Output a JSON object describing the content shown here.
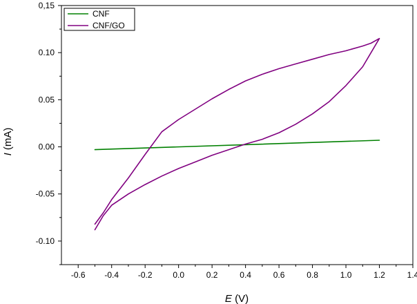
{
  "chart_data": {
    "type": "line",
    "xlabel_italic": "E",
    "xlabel_unit": "(V)",
    "ylabel_italic": "I",
    "ylabel_unit": "(mA)",
    "xlim": [
      -0.7,
      1.4
    ],
    "ylim": [
      -0.125,
      0.15
    ],
    "x_ticks": [
      -0.6,
      -0.4,
      -0.2,
      0.0,
      0.2,
      0.4,
      0.6,
      0.8,
      1.0,
      1.2,
      1.4
    ],
    "x_tick_labels": [
      "-0.6",
      "-0.4",
      "-0.2",
      "0.0",
      "0.2",
      "0.4",
      "0.6",
      "0.8",
      "1.0",
      "1.2",
      "1.4"
    ],
    "y_ticks": [
      -0.1,
      -0.05,
      0.0,
      0.05,
      0.1,
      0.15
    ],
    "y_tick_labels": [
      "-0.10",
      "-0.05",
      "0.00",
      "0.05",
      "0.10",
      "0,15"
    ],
    "grid": false,
    "legend_position": "top-left",
    "series": [
      {
        "name": "CNF",
        "color": "#008000",
        "x": [
          -0.5,
          1.2
        ],
        "y": [
          -0.003,
          0.007
        ]
      },
      {
        "name": "CNF/GO",
        "color": "#800080",
        "x": [
          -0.5,
          -0.45,
          -0.4,
          -0.3,
          -0.2,
          -0.1,
          0.0,
          0.1,
          0.2,
          0.3,
          0.4,
          0.5,
          0.6,
          0.7,
          0.8,
          0.9,
          1.0,
          1.1,
          1.15,
          1.2,
          1.2,
          1.15,
          1.1,
          1.0,
          0.9,
          0.8,
          0.7,
          0.6,
          0.5,
          0.4,
          0.3,
          0.2,
          0.1,
          0.0,
          -0.1,
          -0.2,
          -0.3,
          -0.4,
          -0.45,
          -0.5
        ],
        "y": [
          -0.082,
          -0.07,
          -0.056,
          -0.033,
          -0.008,
          0.016,
          0.029,
          0.04,
          0.051,
          0.061,
          0.07,
          0.077,
          0.083,
          0.088,
          0.093,
          0.098,
          0.102,
          0.107,
          0.11,
          0.115,
          0.115,
          0.1,
          0.085,
          0.065,
          0.048,
          0.035,
          0.024,
          0.015,
          0.008,
          0.003,
          -0.003,
          -0.009,
          -0.016,
          -0.023,
          -0.031,
          -0.04,
          -0.05,
          -0.062,
          -0.073,
          -0.088
        ]
      }
    ]
  }
}
